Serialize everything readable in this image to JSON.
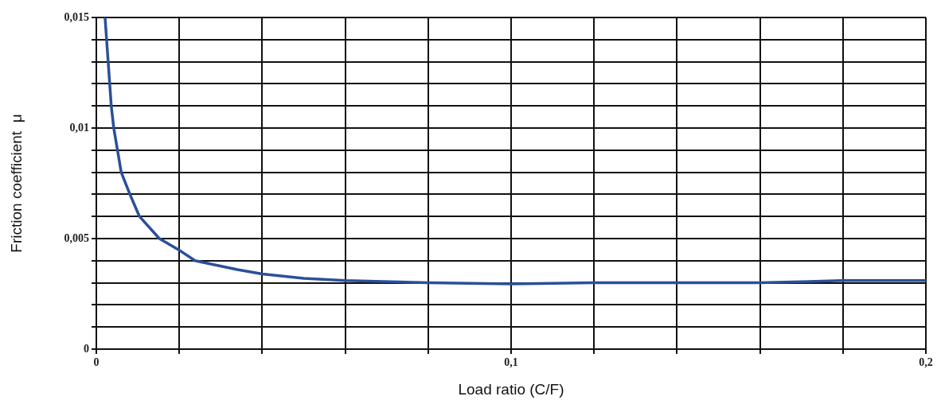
{
  "chart_data": {
    "type": "line",
    "xlabel": "Load ratio (C/F)",
    "ylabel": "Friction coefficient  μ",
    "xlim": [
      0,
      0.2
    ],
    "ylim": [
      0,
      0.015
    ],
    "xticks": [
      0,
      {
        "value": 0.02,
        "label": null
      },
      {
        "value": 0.04,
        "label": null
      },
      {
        "value": 0.06,
        "label": null
      },
      {
        "value": 0.08,
        "label": null
      },
      {
        "value": 0.1,
        "label": "0,1"
      },
      {
        "value": 0.12,
        "label": null
      },
      {
        "value": 0.14,
        "label": null
      },
      {
        "value": 0.16,
        "label": null
      },
      {
        "value": 0.18,
        "label": null
      },
      {
        "value": 0.2,
        "label": "0,2"
      }
    ],
    "yticks": [
      0,
      {
        "value": 0.001,
        "label": null
      },
      {
        "value": 0.002,
        "label": null
      },
      {
        "value": 0.003,
        "label": null
      },
      {
        "value": 0.004,
        "label": null
      },
      {
        "value": 0.005,
        "label": "0,005"
      },
      {
        "value": 0.006,
        "label": null
      },
      {
        "value": 0.007,
        "label": null
      },
      {
        "value": 0.008,
        "label": null
      },
      {
        "value": 0.009,
        "label": null
      },
      {
        "value": 0.01,
        "label": "0,01"
      },
      {
        "value": 0.011,
        "label": null
      },
      {
        "value": 0.012,
        "label": null
      },
      {
        "value": 0.013,
        "label": null
      },
      {
        "value": 0.014,
        "label": null
      },
      {
        "value": 0.015,
        "label": "0,015"
      }
    ],
    "grid": true,
    "legend": false,
    "marker": "none",
    "line_style": "solid",
    "x": [
      0.0021,
      0.0036,
      0.0042,
      0.006,
      0.0081,
      0.0104,
      0.0152,
      0.0198,
      0.0238,
      0.0276,
      0.034,
      0.04,
      0.05,
      0.06,
      0.08,
      0.1,
      0.12,
      0.14,
      0.16,
      0.18,
      0.2
    ],
    "series": [
      {
        "color": "#2b4f9a",
        "values": [
          0.015,
          0.011,
          0.01,
          0.008,
          0.007,
          0.006,
          0.005,
          0.0045,
          0.004,
          0.00385,
          0.0036,
          0.0034,
          0.0032,
          0.0031,
          0.003,
          0.00295,
          0.003,
          0.003,
          0.003,
          0.0031,
          0.0031
        ]
      }
    ]
  }
}
